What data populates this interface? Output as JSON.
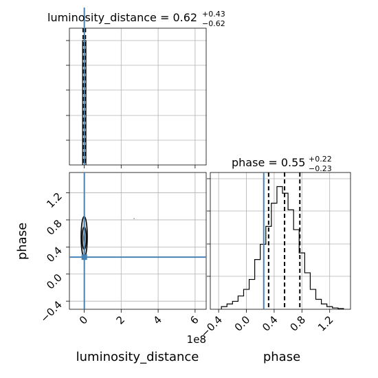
{
  "chart_data": [
    {
      "type": "histogram",
      "panel": "luminosity_distance",
      "title": {
        "main": "luminosity_distance = 0.62",
        "sup": "+0.43",
        "sub": "−0.62"
      },
      "xlim": [
        -80000000,
        660000000
      ],
      "x_ticks": [
        0,
        200000000,
        400000000,
        600000000
      ],
      "bins": [
        -5000000,
        2000000
      ],
      "counts": [
        1
      ],
      "quantiles": [
        0,
        620000,
        1050000
      ],
      "truth": 620000
    },
    {
      "type": "histogram",
      "panel": "phase",
      "title": {
        "main": "phase = 0.55",
        "sup": "+0.22",
        "sub": "−0.23"
      },
      "xlabel": "phase",
      "xlim": [
        -0.52,
        1.5
      ],
      "x_ticks": [
        -0.4,
        0.0,
        0.4,
        0.8,
        1.2
      ],
      "x_ticklabels": [
        "−0.4",
        "0.0",
        "0.4",
        "0.8",
        "1.2"
      ],
      "bin_edges": [
        -0.36,
        -0.28,
        -0.2,
        -0.12,
        -0.04,
        0.04,
        0.12,
        0.2,
        0.28,
        0.36,
        0.44,
        0.52,
        0.6,
        0.68,
        0.76,
        0.84,
        0.92,
        1.0,
        1.08,
        1.16,
        1.24,
        1.32,
        1.4
      ],
      "counts": [
        0.4,
        0.8,
        1.2,
        2.0,
        3.0,
        4.5,
        7.5,
        9.8,
        12.5,
        16.0,
        18.5,
        17.5,
        15.0,
        12.0,
        8.5,
        5.5,
        3.0,
        1.5,
        0.8,
        0.4,
        0.2,
        0.1
      ],
      "ymax": 20,
      "quantiles": [
        0.32,
        0.55,
        0.77
      ],
      "truth": 0.25
    },
    {
      "type": "scatter",
      "panel": "luminosity_distance vs phase",
      "xlabel": "luminosity_distance",
      "ylabel": "phase",
      "x_offset_label": "1e8",
      "xlim": [
        -80000000,
        660000000
      ],
      "ylim": [
        -0.52,
        1.5
      ],
      "x_ticks": [
        0,
        200000000,
        400000000,
        600000000
      ],
      "x_ticklabels": [
        "0",
        "2",
        "4",
        "6"
      ],
      "y_ticks": [
        -0.4,
        0.0,
        0.4,
        0.8,
        1.2
      ],
      "y_ticklabels": [
        "−0.4",
        "0.0",
        "0.4",
        "0.8",
        "1.2"
      ],
      "points": [
        {
          "x": 0,
          "y": 0.55,
          "spread_y": 0.3
        },
        {
          "x": 270000000,
          "y": 0.82,
          "spread_y": 0
        }
      ],
      "truth": {
        "x": 620000,
        "y": 0.25
      }
    }
  ],
  "colors": {
    "truth": "#4682b4",
    "grid": "#b0b0b0",
    "hist": "#000000"
  }
}
